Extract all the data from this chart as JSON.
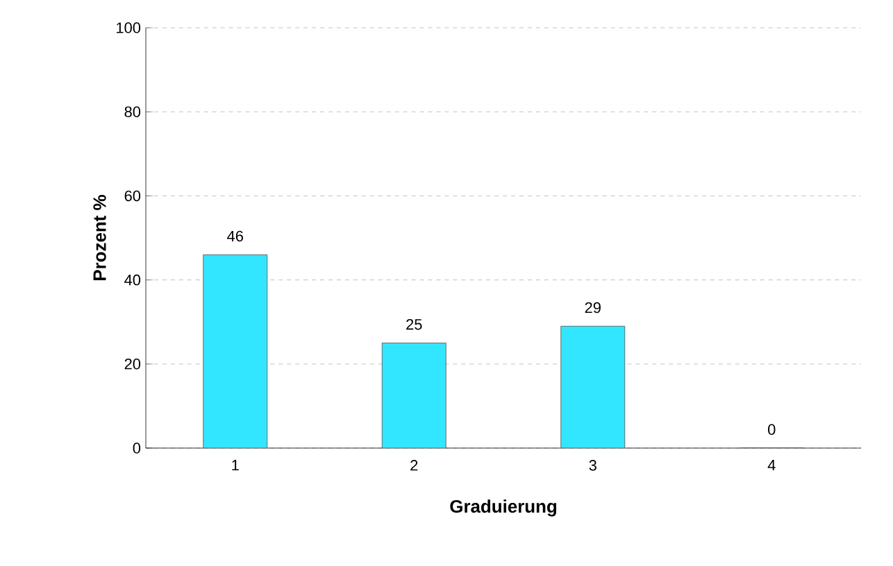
{
  "chart_data": {
    "type": "bar",
    "xlabel": "Graduierung",
    "ylabel": "Prozent %",
    "categories": [
      "1",
      "2",
      "3",
      "4"
    ],
    "values": [
      46,
      25,
      29,
      0
    ],
    "color": "#33e6ff",
    "ylim": [
      0,
      100
    ],
    "yticks": [
      0,
      20,
      40,
      60,
      80,
      100
    ],
    "grid": "y",
    "data_labels": true
  }
}
